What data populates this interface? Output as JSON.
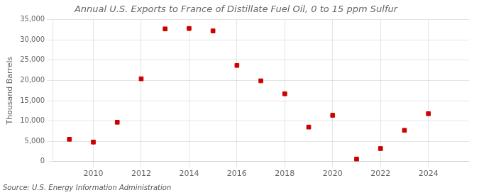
{
  "chart_data": {
    "type": "scatter",
    "title": "Annual U.S. Exports to France of Distillate Fuel Oil, 0 to 15 ppm Sulfur",
    "ylabel": "Thousand Barrels",
    "source": "Source: U.S. Energy Information Administration",
    "x": [
      2009,
      2010,
      2011,
      2012,
      2013,
      2014,
      2015,
      2016,
      2017,
      2018,
      2019,
      2020,
      2021,
      2022,
      2023,
      2024
    ],
    "values": [
      5500,
      4800,
      9700,
      20400,
      32700,
      32800,
      32200,
      23700,
      19900,
      16700,
      8500,
      11400,
      600,
      3200,
      7700,
      11800
    ],
    "color": "#CC0000",
    "marker": "square",
    "xlim": [
      2008.3,
      2025.7
    ],
    "xticks": [
      2010,
      2012,
      2014,
      2016,
      2018,
      2020,
      2022,
      2024
    ],
    "ylim": [
      0,
      35000
    ],
    "yticks": [
      0,
      {
        "value": 5000,
        "label": "5,000"
      },
      {
        "value": 10000,
        "label": "10,000"
      },
      {
        "value": 15000,
        "label": "15,000"
      },
      {
        "value": 20000,
        "label": "20,000"
      },
      {
        "value": 25000,
        "label": "25,000"
      },
      {
        "value": 30000,
        "label": "30,000"
      },
      {
        "value": 35000,
        "label": "35,000"
      }
    ],
    "grid": true
  }
}
